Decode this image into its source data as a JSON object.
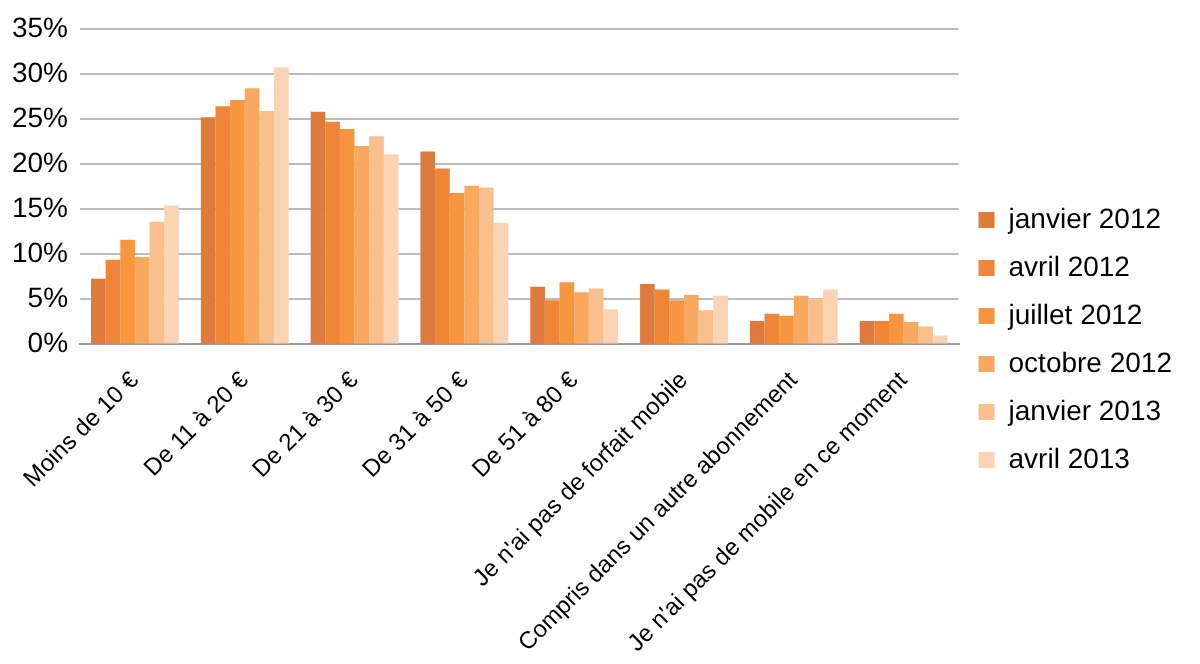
{
  "chart_data": {
    "type": "bar",
    "categories": [
      "Moins de 10 €",
      "De 11 à 20 €",
      "De 21 à 30 €",
      "De 31 à 50 €",
      "De 51 à 80 €",
      "Je n'ai pas de forfait mobile",
      "Compris dans un autre abonnement",
      "Je n'ai pas de mobile en ce moment"
    ],
    "series": [
      {
        "name": "janvier 2012",
        "color": "#de7a3c",
        "values": [
          7.3,
          25.2,
          25.8,
          21.4,
          6.4,
          6.7,
          2.6,
          2.6
        ]
      },
      {
        "name": "avril 2012",
        "color": "#ef8536",
        "values": [
          9.4,
          26.4,
          24.7,
          19.5,
          4.9,
          6.1,
          3.4,
          2.6
        ]
      },
      {
        "name": "juillet 2012",
        "color": "#f7963f",
        "values": [
          11.6,
          27.1,
          23.9,
          16.8,
          6.9,
          4.9,
          3.2,
          3.4
        ]
      },
      {
        "name": "octobre 2012",
        "color": "#f8a95f",
        "values": [
          9.7,
          28.4,
          22.0,
          17.6,
          5.8,
          5.5,
          5.4,
          2.5
        ]
      },
      {
        "name": "janvier 2013",
        "color": "#f9bf8c",
        "values": [
          13.6,
          25.9,
          23.1,
          17.4,
          6.2,
          3.8,
          5.1,
          2.0
        ]
      },
      {
        "name": "avril 2013",
        "color": "#fbd4b4",
        "values": [
          15.4,
          30.7,
          21.1,
          13.5,
          3.9,
          5.4,
          6.1,
          1.0
        ]
      }
    ],
    "ylim": [
      0,
      35
    ],
    "yticks": [
      {
        "value": 0,
        "label": "0%"
      },
      {
        "value": 5,
        "label": "5%"
      },
      {
        "value": 10,
        "label": "10%"
      },
      {
        "value": 15,
        "label": "15%"
      },
      {
        "value": 20,
        "label": "20%"
      },
      {
        "value": 25,
        "label": "25%"
      },
      {
        "value": 30,
        "label": "30%"
      },
      {
        "value": 35,
        "label": "35%"
      }
    ],
    "grid": "y",
    "legend": "right"
  }
}
